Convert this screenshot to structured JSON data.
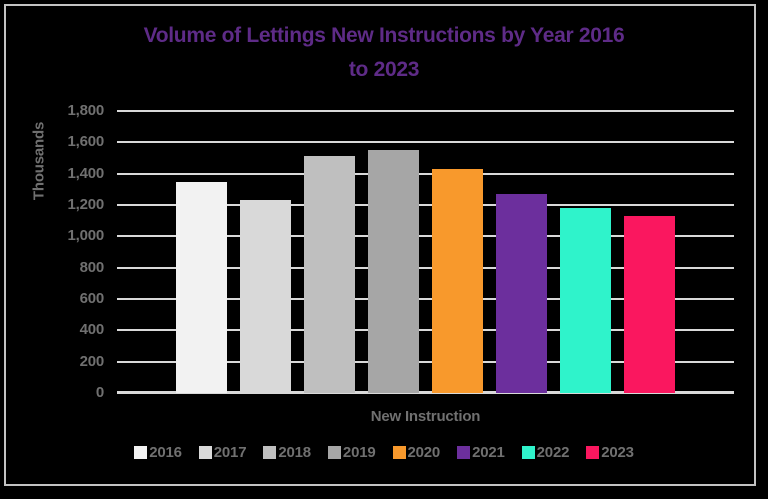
{
  "window": {
    "background_color": "#000000",
    "border_color": "#C3C3C3"
  },
  "chart_data": {
    "type": "bar",
    "title": "Volume of Lettings New Instructions by Year 2016 to 2023",
    "title_lines": [
      "Volume of Lettings New Instructions by Year 2016",
      "to 2023"
    ],
    "title_color": "#5E2B87",
    "xlabel": "New Instruction",
    "ylabel": "Thousands",
    "categories": [
      "2016",
      "2017",
      "2018",
      "2019",
      "2020",
      "2021",
      "2022",
      "2023"
    ],
    "values": [
      1350,
      1230,
      1510,
      1550,
      1430,
      1270,
      1180,
      1130
    ],
    "bar_colors": [
      "#F2F2F2",
      "#D9D9D9",
      "#BFBFBF",
      "#A6A6A6",
      "#F8992C",
      "#6C2F9D",
      "#2FF3CB",
      "#FA175F"
    ],
    "ylim": [
      0,
      1800
    ],
    "yticks": [
      {
        "value": 0,
        "label": "0"
      },
      {
        "value": 200,
        "label": "200"
      },
      {
        "value": 400,
        "label": "400"
      },
      {
        "value": 600,
        "label": "600"
      },
      {
        "value": 800,
        "label": "800"
      },
      {
        "value": 1000,
        "label": "1,000"
      },
      {
        "value": 1200,
        "label": "1,200"
      },
      {
        "value": 1400,
        "label": "1,400"
      },
      {
        "value": 1600,
        "label": "1,600"
      },
      {
        "value": 1800,
        "label": "1,800"
      }
    ],
    "grid": true,
    "legend_position": "bottom",
    "text_color": "#707070",
    "gridline_color": "#D9D9D9"
  }
}
